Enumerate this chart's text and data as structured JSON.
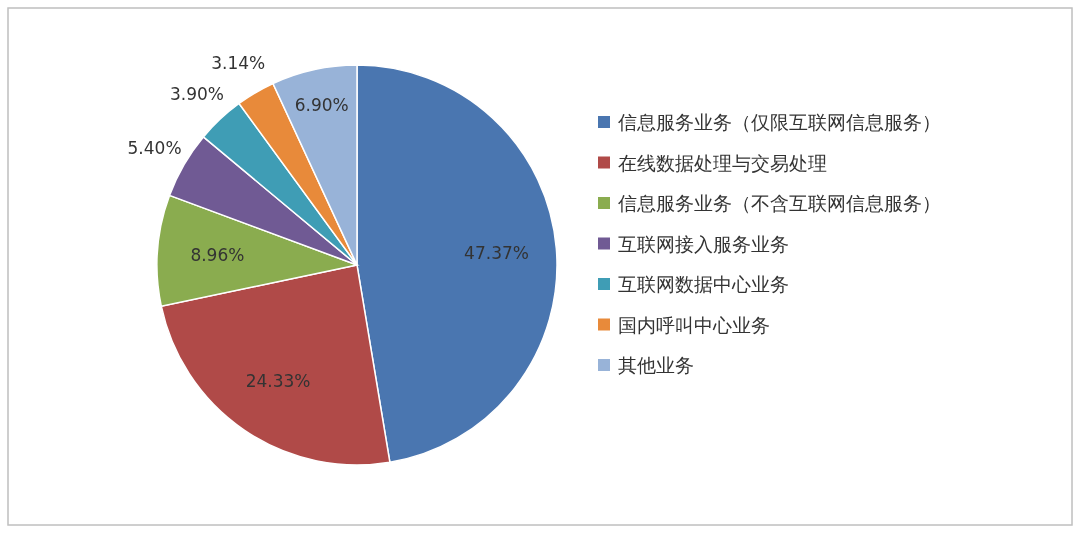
{
  "chart_data": {
    "type": "pie",
    "categories": [
      "信息服务业务（仅限互联网信息服务）",
      "在线数据处理与交易处理",
      "信息服务业务（不含互联网信息服务）",
      "互联网接入服务业务",
      "互联网数据中心业务",
      "国内呼叫中心业务",
      "其他业务"
    ],
    "values": [
      47.37,
      24.33,
      8.96,
      5.4,
      3.9,
      3.14,
      6.9
    ],
    "colors": [
      "#4a76b0",
      "#b04a48",
      "#8aac4f",
      "#705a94",
      "#3f9db5",
      "#e88a3a",
      "#98b3d8"
    ],
    "value_labels": [
      "47.37%",
      "24.33%",
      "8.96%",
      "5.40%",
      "3.90%",
      "3.14%",
      "6.90%"
    ],
    "legend": "right"
  }
}
